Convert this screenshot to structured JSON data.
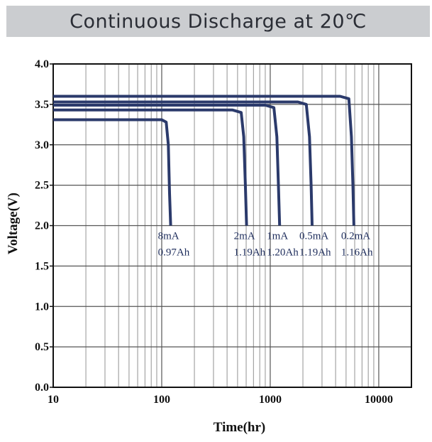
{
  "header": {
    "title": "Continuous Discharge at 20℃"
  },
  "chart_data": {
    "type": "line",
    "title": "Continuous Discharge at 20℃",
    "xlabel": "Time(hr)",
    "ylabel": "Voltage(V)",
    "xscale": "log",
    "xlim": [
      10,
      20000
    ],
    "ylim": [
      0,
      4.0
    ],
    "x_ticks": [
      "10",
      "100",
      "1000",
      "10000"
    ],
    "y_ticks": [
      "0.0",
      "0.5",
      "1.0",
      "1.5",
      "2.0",
      "2.5",
      "3.0",
      "3.5",
      "4.0"
    ],
    "grid": true,
    "line_color": "#2b3a6b",
    "series": [
      {
        "name": "8mA",
        "capacity": "0.97Ah",
        "x": [
          10,
          100,
          110,
          115,
          118,
          121
        ],
        "y": [
          3.31,
          3.31,
          3.28,
          3.0,
          2.4,
          2.0
        ]
      },
      {
        "name": "2mA",
        "capacity": "1.19Ah",
        "x": [
          10,
          450,
          540,
          570,
          590,
          605
        ],
        "y": [
          3.43,
          3.43,
          3.4,
          3.1,
          2.5,
          2.0
        ]
      },
      {
        "name": "1mA",
        "capacity": "1.20Ah",
        "x": [
          10,
          900,
          1080,
          1150,
          1190,
          1220
        ],
        "y": [
          3.49,
          3.49,
          3.46,
          3.1,
          2.5,
          2.0
        ]
      },
      {
        "name": "0.5mA",
        "capacity": "1.19Ah",
        "x": [
          10,
          1800,
          2150,
          2300,
          2380,
          2430
        ],
        "y": [
          3.53,
          3.53,
          3.5,
          3.1,
          2.5,
          2.0
        ]
      },
      {
        "name": "0.2mA",
        "capacity": "1.16Ah",
        "x": [
          10,
          4400,
          5300,
          5600,
          5780,
          5900
        ],
        "y": [
          3.6,
          3.6,
          3.57,
          3.1,
          2.5,
          2.0
        ]
      }
    ]
  }
}
